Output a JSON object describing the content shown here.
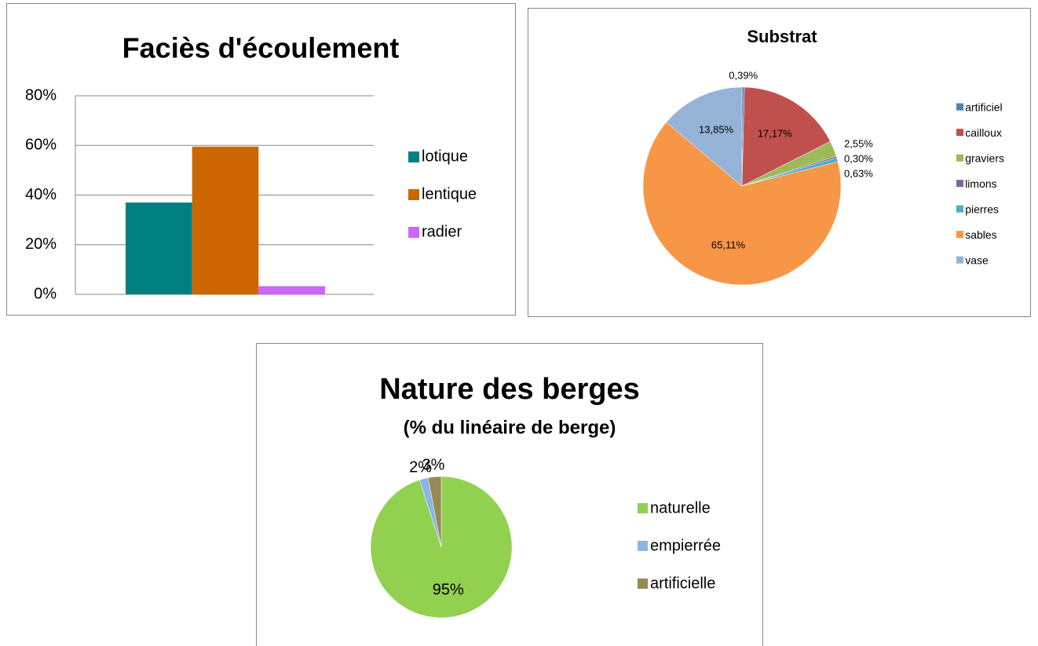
{
  "chart_data": [
    {
      "type": "bar",
      "title": "Faciès d'écoulement",
      "series": [
        {
          "name": "lotique",
          "color": "#008080",
          "values": [
            37
          ]
        },
        {
          "name": "lentique",
          "color": "#cc6600",
          "values": [
            59.5
          ]
        },
        {
          "name": "radier",
          "color": "#cc66ff",
          "values": [
            3.3
          ]
        }
      ],
      "ylim": [
        0,
        80
      ],
      "yticks": [
        {
          "value": 0,
          "label": "0%"
        },
        {
          "value": 20,
          "label": "20%"
        },
        {
          "value": 40,
          "label": "40%"
        },
        {
          "value": 60,
          "label": "60%"
        },
        {
          "value": 80,
          "label": "80%"
        }
      ],
      "grid": true,
      "legend": "right"
    },
    {
      "type": "pie",
      "title": "Substrat",
      "categories": [
        "artificiel",
        "cailloux",
        "graviers",
        "limons",
        "pierres",
        "sables",
        "vase"
      ],
      "values": [
        0.39,
        17.17,
        2.55,
        0.3,
        0.63,
        65.11,
        13.85
      ],
      "value_labels": [
        "0,39%",
        "17,17%",
        "2,55%",
        "0,30%",
        "0,63%",
        "65,11%",
        "13,85%"
      ],
      "colors": [
        "#4f81bd",
        "#c0504d",
        "#9bbb59",
        "#8064a2",
        "#4bacc6",
        "#f79646",
        "#95b3d7"
      ],
      "legend": "right"
    },
    {
      "type": "pie",
      "title": "Nature des berges",
      "subtitle": "(% du linéaire de berge)",
      "categories": [
        "naturelle",
        "empierrée",
        "artificielle"
      ],
      "values": [
        95,
        2,
        3
      ],
      "value_labels": [
        "95%",
        "2%",
        "3%"
      ],
      "colors": [
        "#92d050",
        "#8db4e2",
        "#948a54"
      ],
      "legend": "right"
    }
  ]
}
